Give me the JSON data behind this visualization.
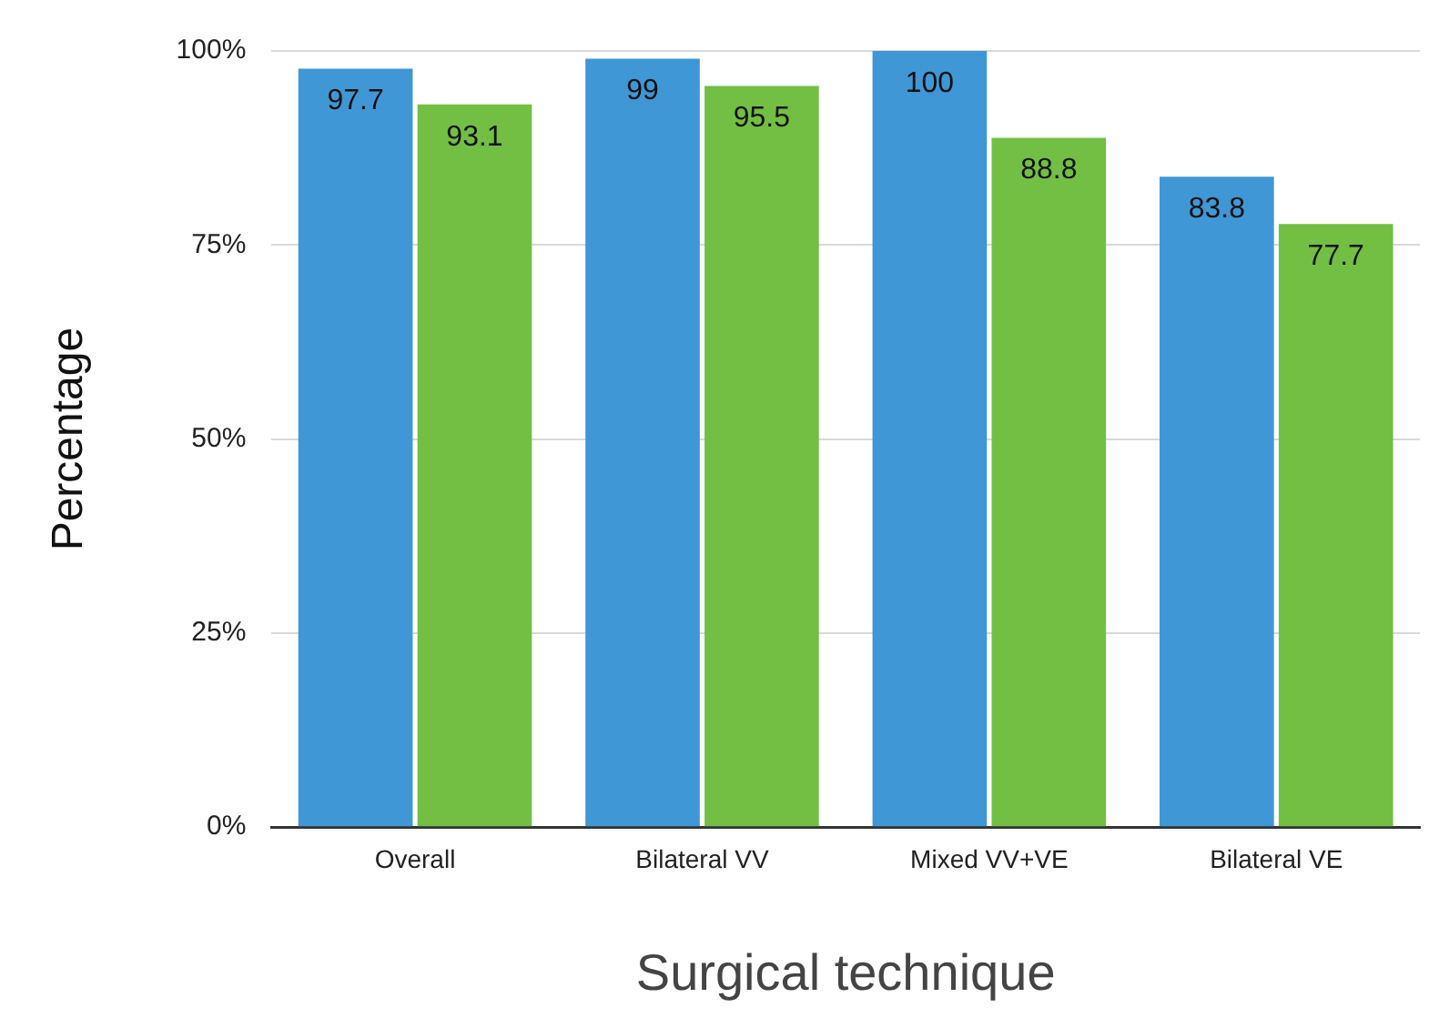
{
  "chart_data": {
    "type": "bar",
    "xlabel": "Surgical technique",
    "ylabel": "Percentage",
    "categories": [
      "Overall",
      "Bilateral VV",
      "Mixed VV+VE",
      "Bilateral VE"
    ],
    "series": [
      {
        "color": "#3f97d6",
        "values": [
          97.7,
          99,
          100,
          83.8
        ]
      },
      {
        "color": "#72bf44",
        "values": [
          93.1,
          95.5,
          88.8,
          77.7
        ]
      }
    ],
    "ylim": [
      0,
      100
    ],
    "yticks": [
      {
        "value": 0,
        "label": "0%"
      },
      {
        "value": 25,
        "label": "25%"
      },
      {
        "value": 50,
        "label": "50%"
      },
      {
        "value": 75,
        "label": "75%"
      },
      {
        "value": 100,
        "label": "100%"
      }
    ],
    "grid": "y",
    "legend": false,
    "data_labels": true
  }
}
